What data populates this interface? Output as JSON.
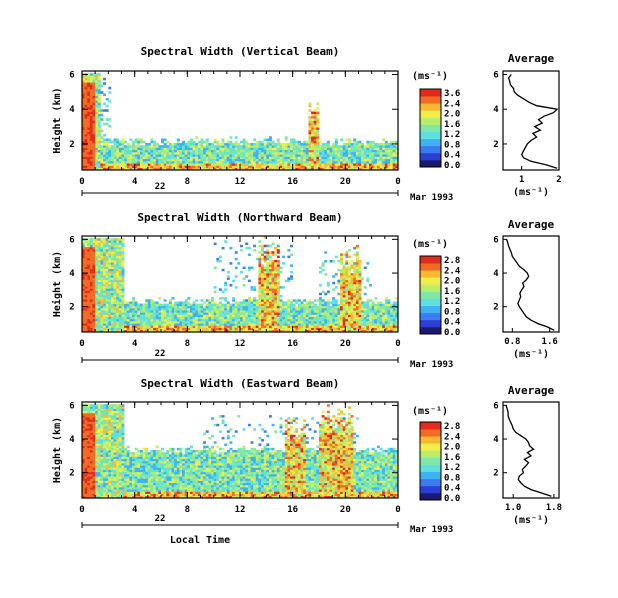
{
  "colorbar_colors": [
    "#1a1a6e",
    "#2b3fd6",
    "#3d7bf0",
    "#3fb2f2",
    "#5fe0e0",
    "#7fe8a8",
    "#b8ee6a",
    "#f0ee4a",
    "#f8b830",
    "#f36a24",
    "#e02c1c"
  ],
  "chart_data": [
    {
      "type": "heatmap",
      "title": "Spectral Width (Vertical Beam)",
      "xlabel": "",
      "ylabel": "Height (km)",
      "x_ticks": [
        "0",
        "4",
        "8",
        "12",
        "16",
        "20",
        "0"
      ],
      "xlim": [
        0,
        24
      ],
      "y_ticks": [
        "2",
        "4",
        "6"
      ],
      "ylim": [
        0.5,
        6.2
      ],
      "date_day": "22",
      "date_label": "Mar 1993",
      "colorbar": {
        "unit": "(ms⁻¹)",
        "ticks": [
          "3.6",
          "2.4",
          "2.0",
          "1.6",
          "1.2",
          "0.8",
          "0.4",
          "0.0"
        ],
        "range": [
          0,
          3.6
        ]
      },
      "avg_profile": {
        "title": "Average",
        "xlabel": "(ms⁻¹)",
        "x_ticks": [
          "1",
          "2"
        ],
        "xlim": [
          0.5,
          2.0
        ],
        "y_ticks": [
          "2",
          "4",
          "6"
        ],
        "ylim": [
          0.5,
          6.2
        ],
        "height": [
          0.6,
          0.8,
          1.0,
          1.2,
          1.4,
          1.6,
          1.8,
          2.0,
          2.2,
          2.4,
          2.6,
          2.8,
          3.0,
          3.2,
          3.4,
          3.6,
          3.8,
          4.0,
          4.2,
          4.4,
          4.6,
          4.8,
          5.0,
          5.2,
          5.4,
          5.6,
          5.8,
          6.0
        ],
        "width": [
          1.95,
          1.65,
          1.25,
          1.05,
          1.0,
          1.05,
          1.1,
          1.15,
          1.25,
          1.4,
          1.3,
          1.5,
          1.35,
          1.55,
          1.45,
          1.6,
          1.85,
          1.95,
          1.4,
          1.2,
          1.05,
          0.9,
          0.8,
          0.78,
          0.7,
          0.68,
          0.65,
          0.72
        ]
      }
    },
    {
      "type": "heatmap",
      "title": "Spectral Width (Northward Beam)",
      "xlabel": "",
      "ylabel": "Height (km)",
      "x_ticks": [
        "0",
        "4",
        "8",
        "12",
        "16",
        "20",
        "0"
      ],
      "xlim": [
        0,
        24
      ],
      "y_ticks": [
        "2",
        "4",
        "6"
      ],
      "ylim": [
        0.5,
        6.2
      ],
      "date_day": "22",
      "date_label": "Mar 1993",
      "colorbar": {
        "unit": "(ms⁻¹)",
        "ticks": [
          "2.8",
          "2.4",
          "2.0",
          "1.6",
          "1.2",
          "0.8",
          "0.4",
          "0.0"
        ],
        "range": [
          0,
          2.8
        ]
      },
      "avg_profile": {
        "title": "Average",
        "xlabel": "(ms⁻¹)",
        "x_ticks": [
          "0.8",
          "1.6"
        ],
        "xlim": [
          0.6,
          1.8
        ],
        "y_ticks": [
          "2",
          "4",
          "6"
        ],
        "ylim": [
          0.5,
          6.2
        ],
        "height": [
          0.6,
          0.8,
          1.0,
          1.2,
          1.4,
          1.6,
          1.8,
          2.0,
          2.2,
          2.4,
          2.6,
          2.8,
          3.0,
          3.2,
          3.4,
          3.6,
          3.8,
          4.0,
          4.2,
          4.4,
          4.6,
          4.8,
          5.0,
          5.2,
          5.4,
          5.6,
          5.8,
          6.0
        ],
        "width": [
          1.7,
          1.55,
          1.35,
          1.2,
          1.1,
          1.05,
          1.0,
          0.95,
          0.92,
          0.95,
          0.98,
          0.96,
          1.0,
          1.05,
          1.02,
          1.1,
          1.15,
          1.12,
          1.05,
          0.95,
          0.9,
          0.85,
          0.8,
          0.78,
          0.75,
          0.72,
          0.7,
          0.68
        ]
      }
    },
    {
      "type": "heatmap",
      "title": "Spectral Width (Eastward Beam)",
      "xlabel": "Local Time",
      "ylabel": "Height (km)",
      "x_ticks": [
        "0",
        "4",
        "8",
        "12",
        "16",
        "20",
        "0"
      ],
      "xlim": [
        0,
        24
      ],
      "y_ticks": [
        "2",
        "4",
        "6"
      ],
      "ylim": [
        0.5,
        6.2
      ],
      "date_day": "22",
      "date_label": "Mar 1993",
      "colorbar": {
        "unit": "(ms⁻¹)",
        "ticks": [
          "2.8",
          "2.4",
          "2.0",
          "1.6",
          "1.2",
          "0.8",
          "0.4",
          "0.0"
        ],
        "range": [
          0,
          2.8
        ]
      },
      "avg_profile": {
        "title": "Average",
        "xlabel": "(ms⁻¹)",
        "x_ticks": [
          "1.0",
          "1.8"
        ],
        "xlim": [
          0.8,
          1.9
        ],
        "y_ticks": [
          "2",
          "4",
          "6"
        ],
        "ylim": [
          0.5,
          6.2
        ],
        "height": [
          0.6,
          0.8,
          1.0,
          1.2,
          1.4,
          1.6,
          1.8,
          2.0,
          2.2,
          2.4,
          2.6,
          2.8,
          3.0,
          3.2,
          3.4,
          3.6,
          3.8,
          4.0,
          4.2,
          4.4,
          4.6,
          4.8,
          5.0,
          5.2,
          5.4,
          5.6,
          5.8,
          6.0
        ],
        "width": [
          1.75,
          1.55,
          1.35,
          1.22,
          1.15,
          1.1,
          1.12,
          1.2,
          1.18,
          1.25,
          1.3,
          1.22,
          1.35,
          1.28,
          1.4,
          1.32,
          1.3,
          1.25,
          1.15,
          1.05,
          1.0,
          0.98,
          0.95,
          0.92,
          0.9,
          0.9,
          0.88,
          0.86
        ]
      }
    }
  ]
}
